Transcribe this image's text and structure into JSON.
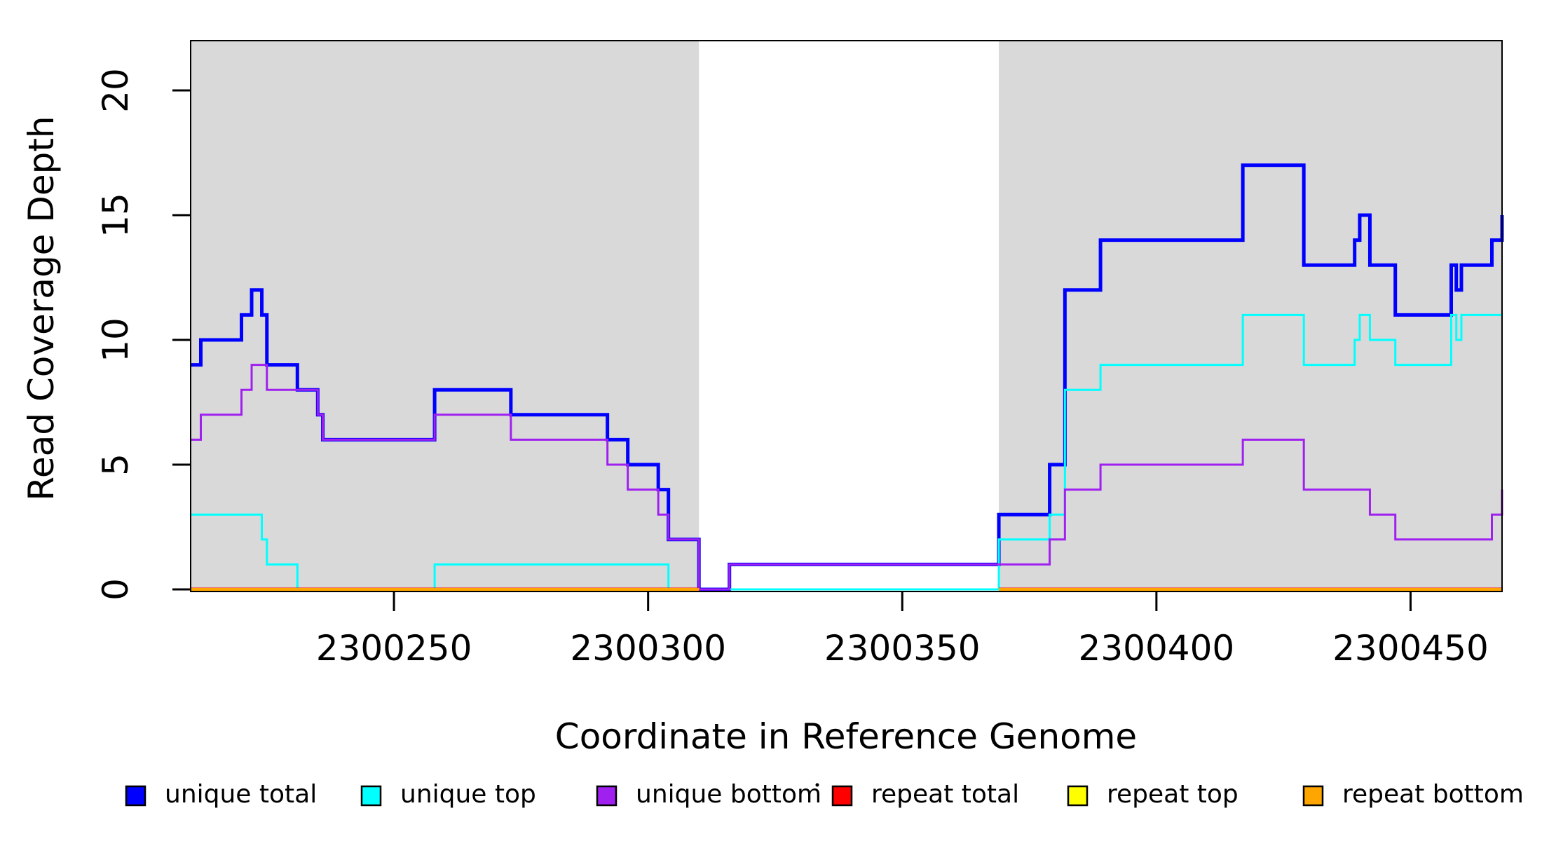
{
  "figure": {
    "background": "#FFFFFF",
    "repeat_region_fill": "#D9D9D9",
    "box_color": "#000000"
  },
  "chart_data": {
    "type": "line",
    "subtype": "step-coverage",
    "title": "",
    "xlabel": "Coordinate in Reference Genome",
    "ylabel": "Read Coverage Depth",
    "xlim": [
      2300210,
      2300468
    ],
    "ylim": [
      0,
      22
    ],
    "x_ticks": [
      2300250,
      2300300,
      2300350,
      2300400,
      2300450
    ],
    "y_ticks": [
      0,
      5,
      10,
      15,
      20
    ],
    "grid": false,
    "shaded_repeat_regions": [
      [
        2300210,
        2300310
      ],
      [
        2300369,
        2300468
      ]
    ],
    "series": [
      {
        "name": "unique total",
        "color": "#0000FF",
        "width": 5,
        "steps": [
          [
            2300210,
            9
          ],
          [
            2300212,
            10
          ],
          [
            2300220,
            11
          ],
          [
            2300222,
            12
          ],
          [
            2300224,
            11
          ],
          [
            2300225,
            9
          ],
          [
            2300231,
            8
          ],
          [
            2300235,
            7
          ],
          [
            2300236,
            6
          ],
          [
            2300258,
            8
          ],
          [
            2300273,
            7
          ],
          [
            2300292,
            6
          ],
          [
            2300296,
            5
          ],
          [
            2300302,
            4
          ],
          [
            2300304,
            2
          ],
          [
            2300310,
            0
          ],
          [
            2300316,
            1
          ],
          [
            2300369,
            3
          ],
          [
            2300379,
            5
          ],
          [
            2300382,
            12
          ],
          [
            2300389,
            14
          ],
          [
            2300417,
            17
          ],
          [
            2300429,
            13
          ],
          [
            2300439,
            14
          ],
          [
            2300440,
            15
          ],
          [
            2300442,
            13
          ],
          [
            2300447,
            11
          ],
          [
            2300458,
            13
          ],
          [
            2300459,
            12
          ],
          [
            2300460,
            13
          ],
          [
            2300466,
            14
          ],
          [
            2300468,
            15
          ]
        ]
      },
      {
        "name": "unique top",
        "color": "#00FFFF",
        "width": 3,
        "steps": [
          [
            2300210,
            3
          ],
          [
            2300224,
            2
          ],
          [
            2300225,
            1
          ],
          [
            2300231,
            0
          ],
          [
            2300258,
            1
          ],
          [
            2300304,
            0
          ],
          [
            2300369,
            2
          ],
          [
            2300379,
            3
          ],
          [
            2300382,
            8
          ],
          [
            2300389,
            9
          ],
          [
            2300417,
            11
          ],
          [
            2300429,
            9
          ],
          [
            2300439,
            10
          ],
          [
            2300440,
            11
          ],
          [
            2300442,
            10
          ],
          [
            2300447,
            9
          ],
          [
            2300458,
            11
          ],
          [
            2300459,
            10
          ],
          [
            2300460,
            11
          ]
        ]
      },
      {
        "name": "unique bottom",
        "color": "#A020F0",
        "width": 3,
        "steps": [
          [
            2300210,
            6
          ],
          [
            2300212,
            7
          ],
          [
            2300220,
            8
          ],
          [
            2300222,
            9
          ],
          [
            2300225,
            8
          ],
          [
            2300235,
            7
          ],
          [
            2300236,
            6
          ],
          [
            2300258,
            7
          ],
          [
            2300273,
            6
          ],
          [
            2300292,
            5
          ],
          [
            2300296,
            4
          ],
          [
            2300302,
            3
          ],
          [
            2300304,
            2
          ],
          [
            2300310,
            0
          ],
          [
            2300316,
            1
          ],
          [
            2300379,
            2
          ],
          [
            2300382,
            4
          ],
          [
            2300389,
            5
          ],
          [
            2300417,
            6
          ],
          [
            2300429,
            4
          ],
          [
            2300442,
            3
          ],
          [
            2300447,
            2
          ],
          [
            2300466,
            3
          ],
          [
            2300468,
            4
          ]
        ]
      },
      {
        "name": "repeat total",
        "color": "#FF0000",
        "width": 5,
        "segments": [
          {
            "range": [
              2300210,
              2300310
            ],
            "value": 0
          },
          {
            "range": [
              2300369,
              2300468
            ],
            "value": 0
          }
        ]
      },
      {
        "name": "repeat top",
        "color": "#FFFF00",
        "width": 3,
        "segments": [
          {
            "range": [
              2300210,
              2300310
            ],
            "value": 0
          },
          {
            "range": [
              2300369,
              2300468
            ],
            "value": 0
          }
        ]
      },
      {
        "name": "repeat bottom",
        "color": "#FFA500",
        "width": 4,
        "segments": [
          {
            "range": [
              2300210,
              2300310
            ],
            "value": 0
          },
          {
            "range": [
              2300369,
              2300468
            ],
            "value": 0
          }
        ]
      }
    ],
    "legend": {
      "position": "bottom",
      "entries": [
        {
          "label": "unique total",
          "color": "#0000FF"
        },
        {
          "label": "unique top",
          "color": "#00FFFF"
        },
        {
          "label": "unique bottom",
          "color": "#A020F0"
        },
        {
          "label": "repeat total",
          "color": "#FF0000"
        },
        {
          "label": "repeat top",
          "color": "#FFFF00"
        },
        {
          "label": "repeat bottom",
          "color": "#FFA500"
        }
      ]
    }
  }
}
